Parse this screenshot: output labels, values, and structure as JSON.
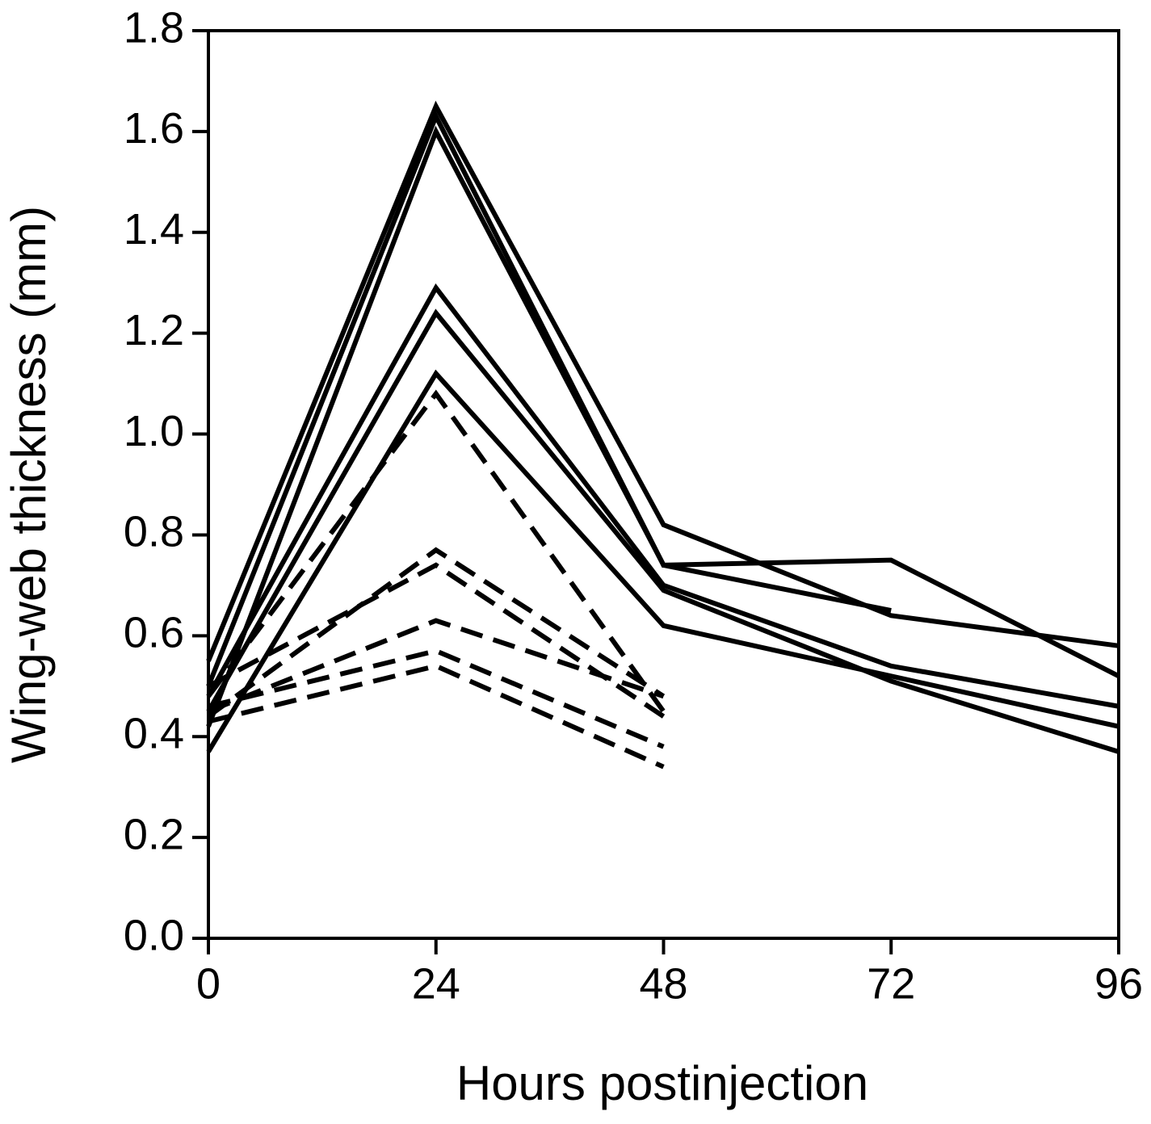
{
  "chart_data": {
    "type": "line",
    "xlabel": "Hours postinjection",
    "ylabel": "Wing-web thickness (mm)",
    "x": [
      0,
      24,
      48,
      72,
      96
    ],
    "xlim": [
      0,
      96
    ],
    "xticks": [
      0,
      24,
      48,
      72,
      96
    ],
    "ylim": [
      0,
      1.8
    ],
    "yticks": [
      {
        "value": 0,
        "label": "0.0"
      },
      0.2,
      0.4,
      0.6,
      0.8,
      {
        "value": 1,
        "label": "1.0"
      },
      1.2,
      1.4,
      1.6,
      1.8
    ],
    "color": "#000000",
    "series": [
      {
        "values": [
          0.55,
          1.65,
          0.82,
          0.64,
          0.58
        ],
        "dashed": false
      },
      {
        "values": [
          0.5,
          1.63,
          0.74,
          0.75,
          0.52
        ],
        "dashed": false
      },
      {
        "values": [
          0.42,
          1.6,
          0.74,
          0.65,
          null
        ],
        "dashed": false
      },
      {
        "values": [
          0.48,
          1.29,
          0.7,
          0.54,
          0.46
        ],
        "dashed": false
      },
      {
        "values": [
          0.45,
          1.24,
          0.69,
          0.51,
          0.37
        ],
        "dashed": false
      },
      {
        "values": [
          0.37,
          1.12,
          0.62,
          0.52,
          0.42
        ],
        "dashed": false
      },
      {
        "values": [
          0.48,
          1.08,
          0.45,
          null,
          null
        ],
        "dashed": true
      },
      {
        "values": [
          0.44,
          0.77,
          0.48,
          null,
          null
        ],
        "dashed": true
      },
      {
        "values": [
          0.5,
          0.74,
          0.44,
          null,
          null
        ],
        "dashed": true
      },
      {
        "values": [
          0.45,
          0.63,
          0.48,
          null,
          null
        ],
        "dashed": true
      },
      {
        "values": [
          0.46,
          0.57,
          0.38,
          null,
          null
        ],
        "dashed": true
      },
      {
        "values": [
          0.43,
          0.54,
          0.34,
          null,
          null
        ],
        "dashed": true
      }
    ]
  }
}
